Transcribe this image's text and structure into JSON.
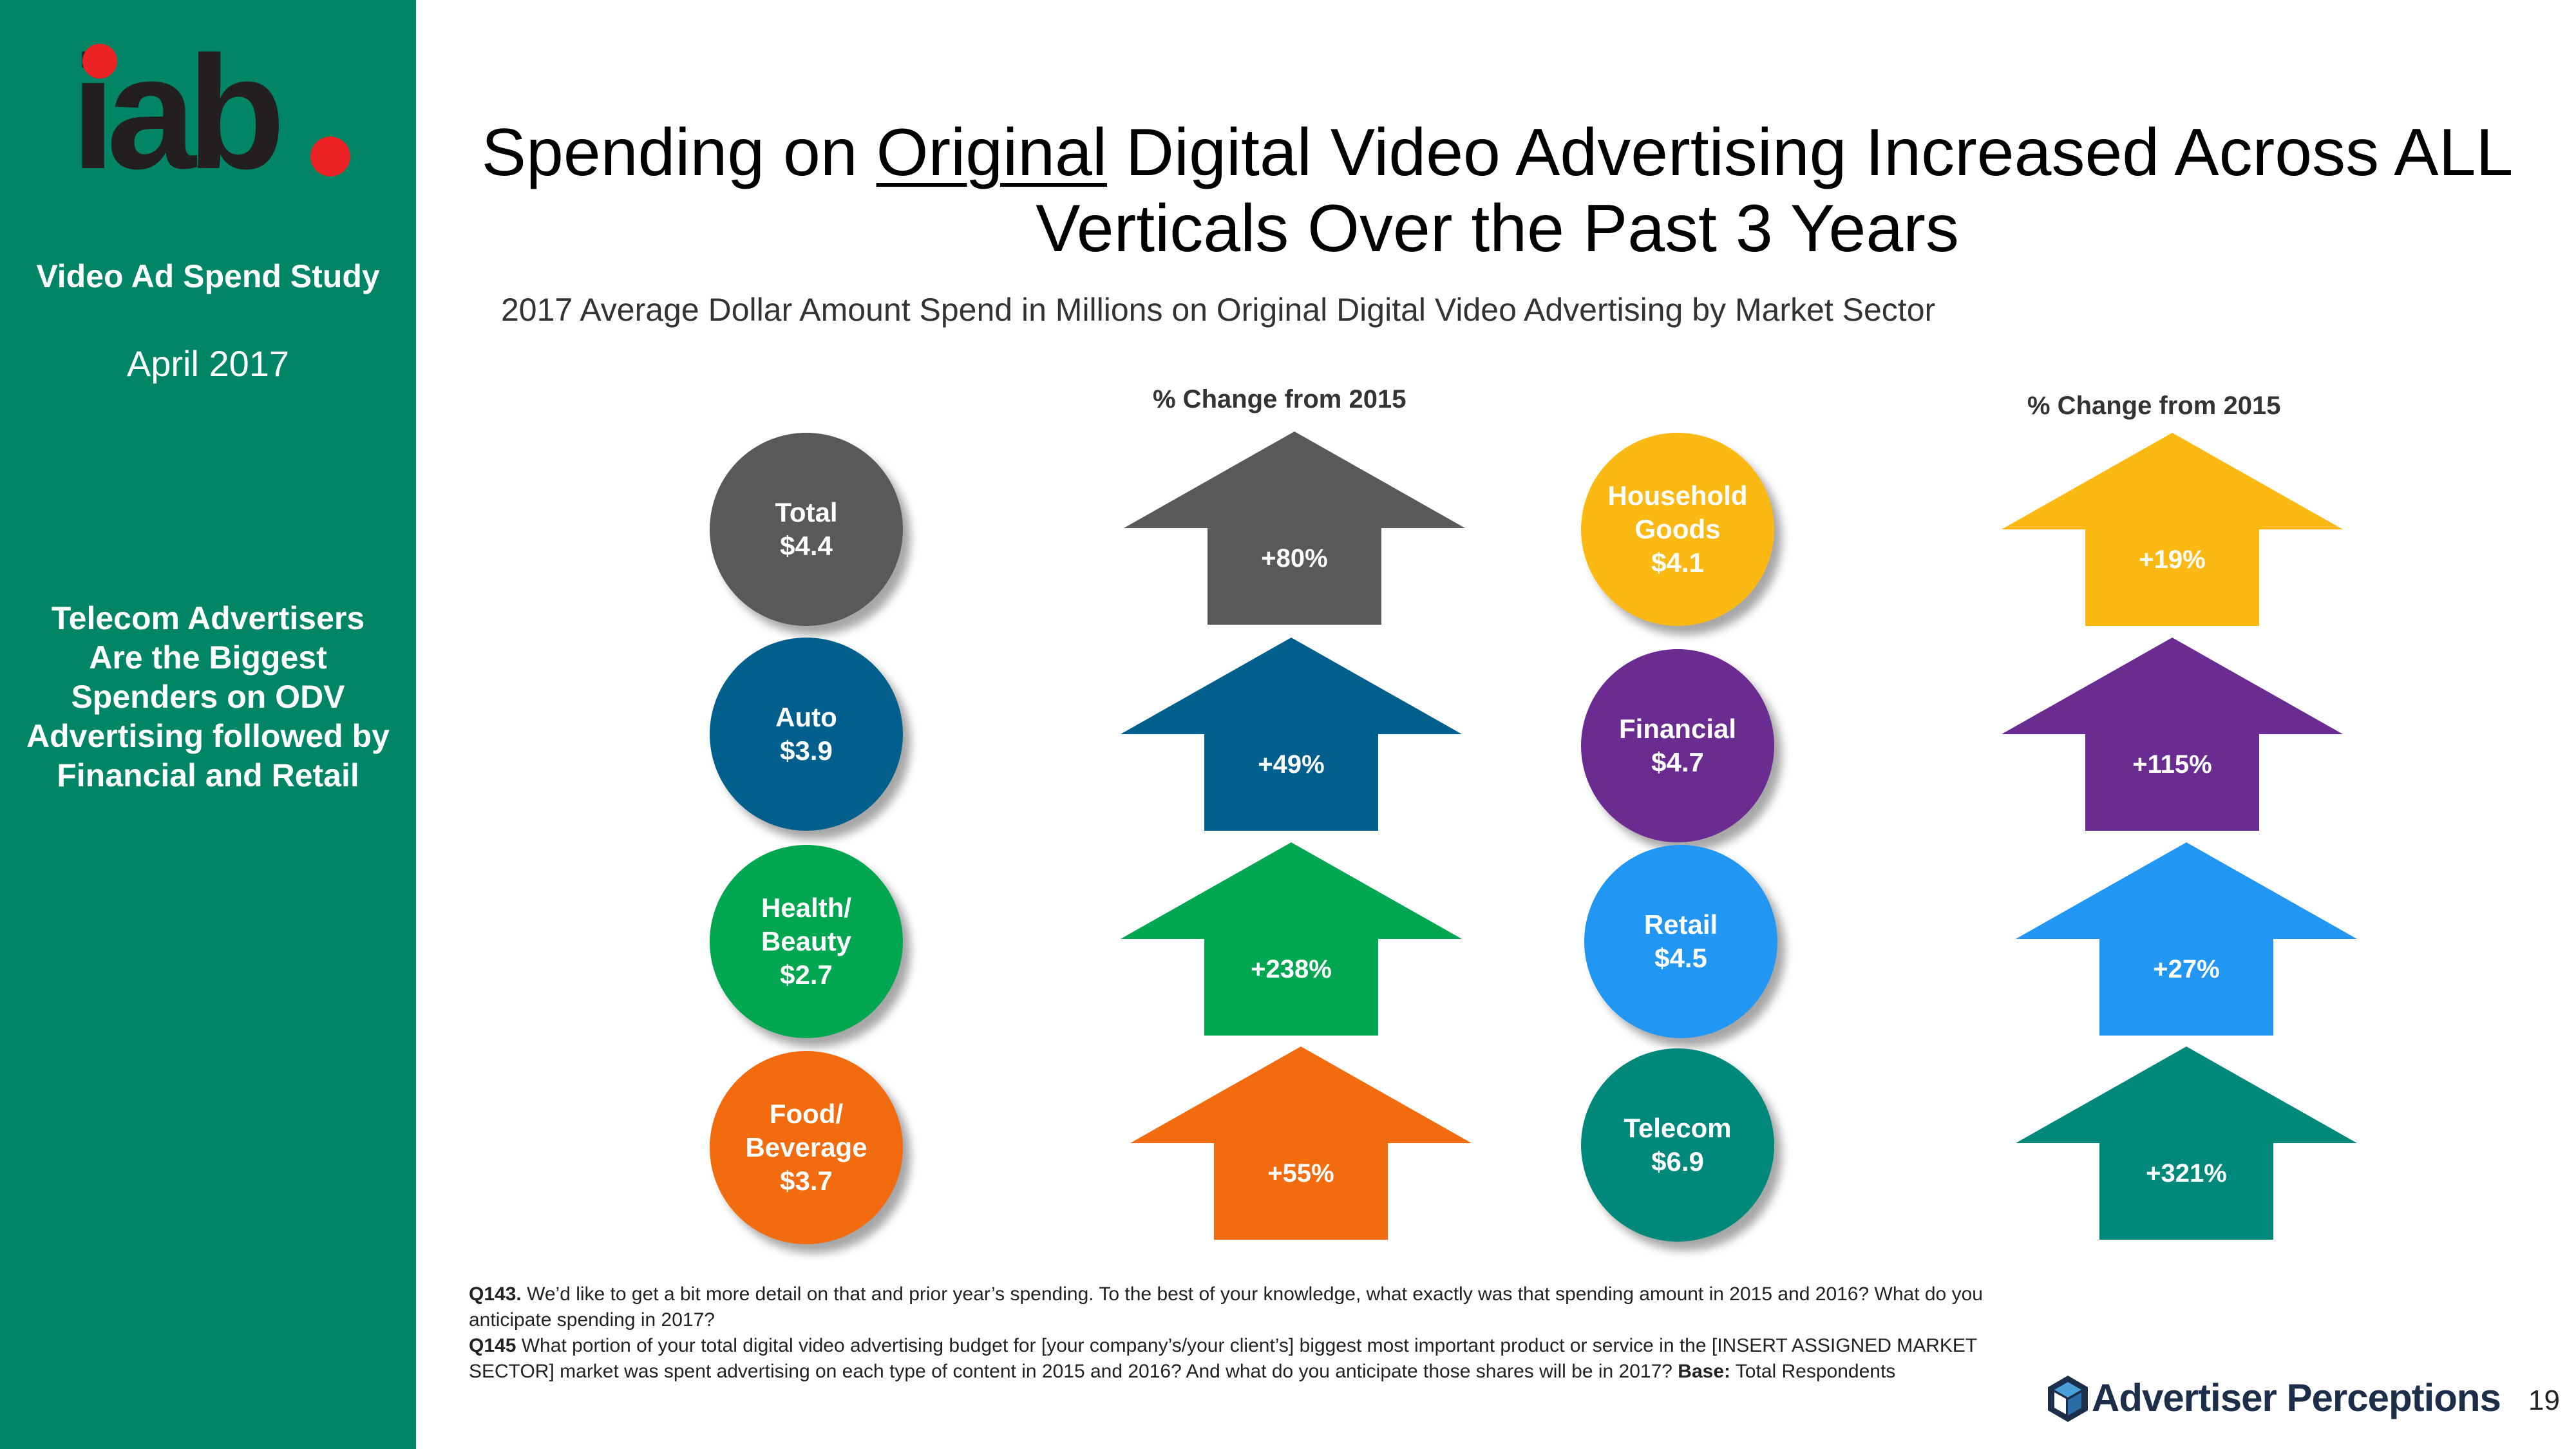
{
  "sidebar": {
    "logo_text": "iab",
    "study": "Video Ad Spend Study",
    "date": "April 2017",
    "note": "Telecom Advertisers Are the Biggest Spenders on ODV Advertising followed by Financial and Retail"
  },
  "title": {
    "before": "Spending on ",
    "underlined": "Original",
    "after": " Digital Video Advertising Increased Across ALL Verticals Over the Past 3 Years"
  },
  "subtitle": "2017 Average Dollar Amount Spend in Millions on Original Digital Video Advertising by Market Sector",
  "column_header": "% Change from 2015",
  "sectors_left": [
    {
      "label_line1": "Total",
      "label_line2": "",
      "amount": "$4.4",
      "change": "+80%",
      "color": "#595959"
    },
    {
      "label_line1": "Auto",
      "label_line2": "",
      "amount": "$3.9",
      "change": "+49%",
      "color": "#005f8c"
    },
    {
      "label_line1": "Health/",
      "label_line2": "Beauty",
      "amount": "$2.7",
      "change": "+238%",
      "color": "#00a650"
    },
    {
      "label_line1": "Food/",
      "label_line2": "Beverage",
      "amount": "$3.7",
      "change": "+55%",
      "color": "#f26b0f"
    }
  ],
  "sectors_right": [
    {
      "label_line1": "Household",
      "label_line2": "Goods",
      "amount": "$4.1",
      "change": "+19%",
      "color": "#fdb913"
    },
    {
      "label_line1": "Financial",
      "label_line2": "",
      "amount": "$4.7",
      "change": "+115%",
      "color": "#6b2c91"
    },
    {
      "label_line1": "Retail",
      "label_line2": "",
      "amount": "$4.5",
      "change": "+27%",
      "color": "#2196f3"
    },
    {
      "label_line1": "Telecom",
      "label_line2": "",
      "amount": "$6.9",
      "change": "+321%",
      "color": "#00887a"
    }
  ],
  "footnote": {
    "q143_label": "Q143.",
    "q143_text": " We’d like to get a bit more detail on that and prior year’s spending.  To the best of your knowledge, what exactly was that spending amount in 2015 and 2016? What do you anticipate spending in 2017?",
    "q145_label": "Q145",
    "q145_text": " What portion of your total digital video advertising budget for [your company’s/your client’s] biggest most important product or service in the [INSERT ASSIGNED MARKET SECTOR] market was spent advertising on each type of content in 2015 and 2016? And what do you anticipate those shares will be in 2017? ",
    "base_label": "Base:",
    "base_text": " Total Respondents"
  },
  "brand": "Advertiser Perceptions",
  "page_number": "19"
}
